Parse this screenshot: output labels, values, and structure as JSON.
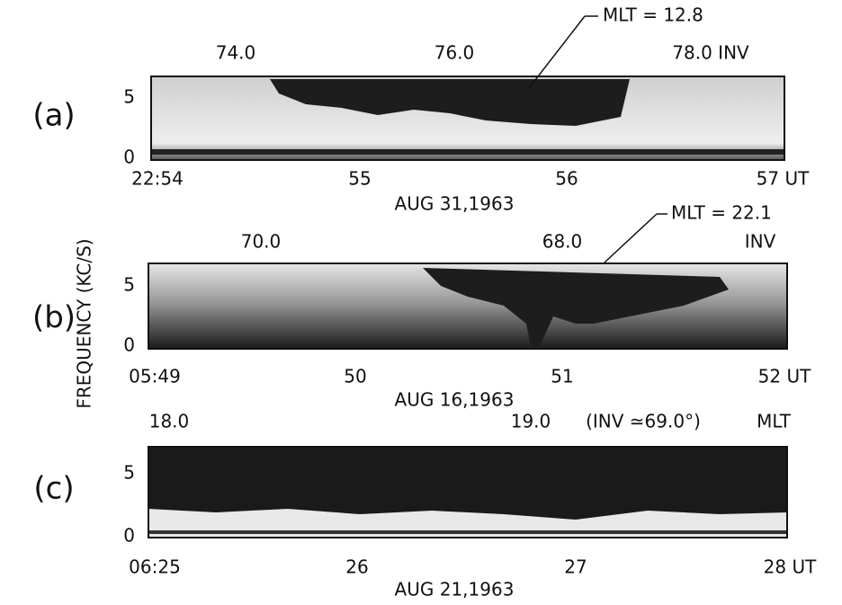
{
  "y_axis_label": "FREQUENCY (KC/S)",
  "panels": [
    {
      "label": "(a)",
      "top_labels": [
        "74.0",
        "76.0",
        "78.0 INV"
      ],
      "annotation": "MLT = 12.8",
      "bottom_labels": [
        "22:54",
        "55",
        "56",
        "57 UT"
      ],
      "date": "AUG 31,1963",
      "y_labels": [
        "5",
        "0"
      ]
    },
    {
      "label": "(b)",
      "top_labels": [
        "70.0",
        "68.0",
        "INV"
      ],
      "annotation": "MLT = 22.1",
      "bottom_labels": [
        "05:49",
        "50",
        "51",
        "52 UT"
      ],
      "date": "AUG 16,1963",
      "y_labels": [
        "5",
        "0"
      ]
    },
    {
      "label": "(c)",
      "top_labels": [
        "18.0",
        "19.0",
        "(INV ≃69.0°)",
        "MLT"
      ],
      "bottom_labels": [
        "06:25",
        "26",
        "27",
        "28 UT"
      ],
      "date": "AUG 21,1963",
      "y_labels": [
        "5",
        "0"
      ]
    }
  ]
}
